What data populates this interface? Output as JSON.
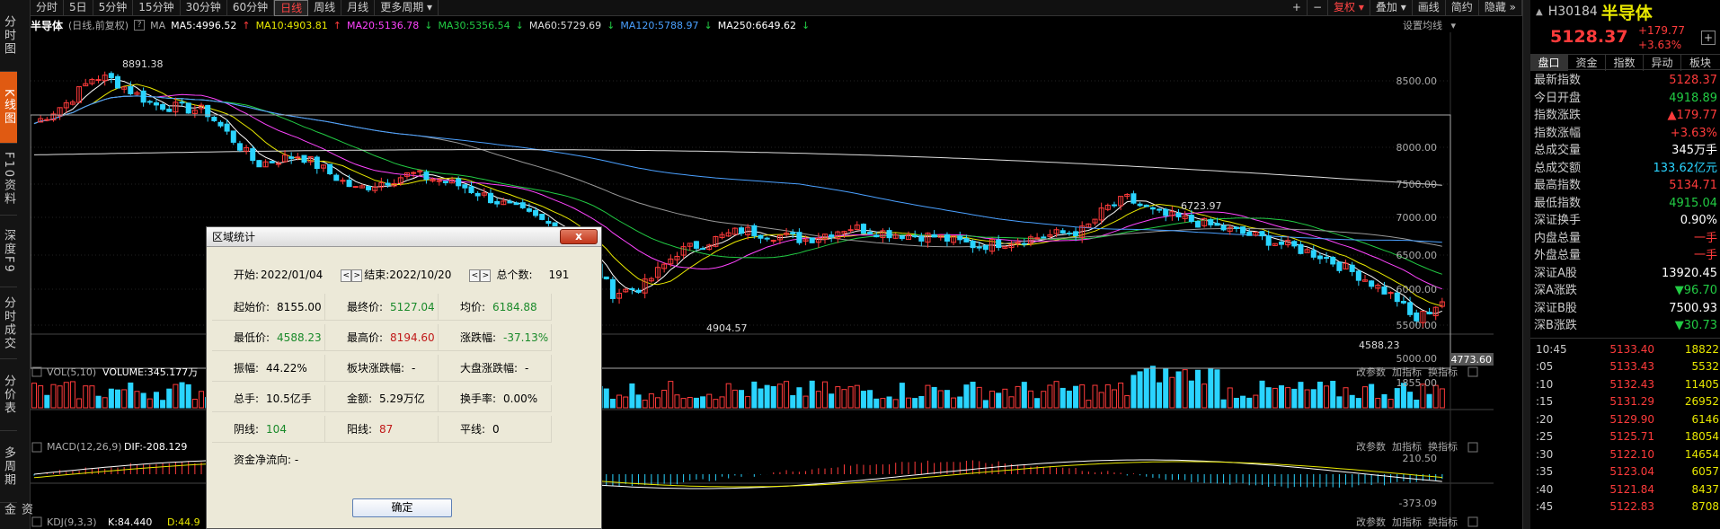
{
  "toolbar": {
    "periods": [
      "分时",
      "5日",
      "5分钟",
      "15分钟",
      "30分钟",
      "60分钟",
      "日线",
      "周线",
      "月线",
      "更多周期"
    ],
    "active_period": "日线",
    "right_buttons": [
      "+",
      "−",
      "复权",
      "叠加",
      "画线",
      "简约",
      "隐藏"
    ]
  },
  "left_nav": [
    "分时图",
    "K线图",
    "F10资料",
    "深度F9",
    "分时成交",
    "分价表",
    "多周期",
    "资金"
  ],
  "info": {
    "name": "半导体",
    "mode": "(日线,前复权)",
    "ma_prefix": "MA",
    "ma5": "MA5:4996.52",
    "ma10": "MA10:4903.81",
    "ma20": "MA20:5136.78",
    "ma30": "MA30:5356.54",
    "ma60": "MA60:5729.69",
    "ma120": "MA120:5788.97",
    "ma250": "MA250:6649.62",
    "settings": "设置均线"
  },
  "price_axis": [
    "8500.00",
    "8000.00",
    "7500.00",
    "7000.00",
    "6500.00",
    "6000.00",
    "5500.00",
    "5000.00"
  ],
  "last_price_tag": "4773.60",
  "annotations": {
    "high": "8891.38",
    "low1": "4904.57",
    "mid_high": "6723.97",
    "low2": "4588.23"
  },
  "volume_panel": {
    "label": "VOL(5,10)",
    "value": "VOLUME:345.177万",
    "axis": "1855.00",
    "links": [
      "改参数",
      "加指标",
      "换指标"
    ]
  },
  "macd_panel": {
    "label": "MACD(12,26,9)",
    "value": "DIF:-208.129",
    "axis_top": "210.50",
    "axis_bottom": "-373.09",
    "links": [
      "改参数",
      "加指标",
      "换指标"
    ]
  },
  "kdj_panel": {
    "label": "KDJ(9,3,3)",
    "k": "K:84.440",
    "d": "D:44.9",
    "links": [
      "改参数",
      "加指标",
      "换指标"
    ]
  },
  "right_panel": {
    "code": "H30184",
    "name": "半导体",
    "price": "5128.37",
    "change": "+179.77",
    "change_pct": "+3.63%",
    "tabs": [
      "盘口",
      "资金",
      "指数",
      "异动",
      "板块"
    ],
    "stats": [
      {
        "k": "最新指数",
        "v": "5128.37",
        "c": "red"
      },
      {
        "k": "今日开盘",
        "v": "4918.89",
        "c": "green"
      },
      {
        "k": "指数涨跌",
        "v": "▲179.77",
        "c": "red"
      },
      {
        "k": "指数涨幅",
        "v": "+3.63%",
        "c": "red"
      },
      {
        "k": "总成交量",
        "v": "345万手",
        "c": "white"
      },
      {
        "k": "总成交额",
        "v": "133.62亿元",
        "c": "cyan"
      },
      {
        "k": "最高指数",
        "v": "5134.71",
        "c": "red"
      },
      {
        "k": "最低指数",
        "v": "4915.04",
        "c": "green"
      },
      {
        "k": "深证换手",
        "v": "0.90%",
        "c": "white"
      },
      {
        "k": "内盘总量",
        "v": "一手",
        "c": "red"
      },
      {
        "k": "外盘总量",
        "v": "一手",
        "c": "red"
      },
      {
        "k": "深证A股",
        "v": "13920.45",
        "c": "white"
      },
      {
        "k": "深A涨跌",
        "v": "▼96.70",
        "c": "green"
      },
      {
        "k": "深证B股",
        "v": "7500.93",
        "c": "white"
      },
      {
        "k": "深B涨跌",
        "v": "▼30.73",
        "c": "green"
      }
    ],
    "ticks": [
      {
        "t": "10:45",
        "p": "5133.40",
        "v": "18822"
      },
      {
        "t": ":05",
        "p": "5133.43",
        "v": "5532"
      },
      {
        "t": ":10",
        "p": "5132.43",
        "v": "11405"
      },
      {
        "t": ":15",
        "p": "5131.29",
        "v": "26952"
      },
      {
        "t": ":20",
        "p": "5129.90",
        "v": "6146"
      },
      {
        "t": ":25",
        "p": "5125.71",
        "v": "18054"
      },
      {
        "t": ":30",
        "p": "5122.10",
        "v": "14654"
      },
      {
        "t": ":35",
        "p": "5123.04",
        "v": "6057"
      },
      {
        "t": ":40",
        "p": "5121.84",
        "v": "8437"
      },
      {
        "t": ":45",
        "p": "5122.83",
        "v": "8708"
      }
    ]
  },
  "dialog": {
    "title": "区域统计",
    "close": "x",
    "start_label": "开始:",
    "start_value": "2022/01/04",
    "end_label": "结束:",
    "end_value": "2022/10/20",
    "total_label": "总个数:",
    "total_value": "191",
    "rows": [
      [
        {
          "l": "起始价:",
          "v": "8155.00",
          "c": "black"
        },
        {
          "l": "最终价:",
          "v": "5127.04",
          "c": "green"
        },
        {
          "l": "均价:",
          "v": "6184.88",
          "c": "green"
        }
      ],
      [
        {
          "l": "最低价:",
          "v": "4588.23",
          "c": "green"
        },
        {
          "l": "最高价:",
          "v": "8194.60",
          "c": "red"
        },
        {
          "l": "涨跌幅:",
          "v": "-37.13%",
          "c": "green"
        }
      ],
      [
        {
          "l": "振幅:",
          "v": "44.22%",
          "c": "black"
        },
        {
          "l": "板块涨跌幅:",
          "v": "-",
          "c": "black"
        },
        {
          "l": "大盘涨跌幅:",
          "v": "-",
          "c": "black"
        }
      ],
      [
        {
          "l": "总手:",
          "v": "10.5亿手",
          "c": "black"
        },
        {
          "l": "金额:",
          "v": "5.29万亿",
          "c": "black"
        },
        {
          "l": "换手率:",
          "v": "0.00%",
          "c": "black"
        }
      ],
      [
        {
          "l": "阴线:",
          "v": "104",
          "c": "green"
        },
        {
          "l": "阳线:",
          "v": "87",
          "c": "red"
        },
        {
          "l": "平线:",
          "v": "0",
          "c": "black"
        }
      ]
    ],
    "fund_flow": "资金净流向: -",
    "ok": "确定"
  },
  "colors": {
    "up": "#ff3b3b",
    "down": "#2ad4ff",
    "ma5": "#ffffff",
    "ma10": "#e8e800",
    "ma20": "#ff44ff",
    "ma30": "#22cc44",
    "ma60": "#999999",
    "ma120": "#4aa0ff",
    "ma250": "#ffffff"
  }
}
